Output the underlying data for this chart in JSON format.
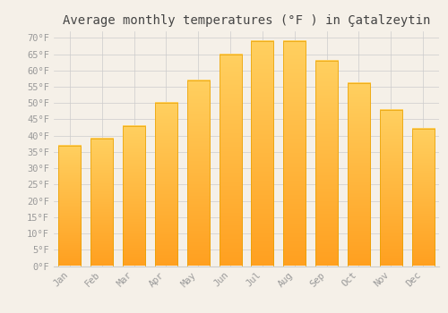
{
  "title": "Average monthly temperatures (°F ) in Çatalzeytin",
  "months": [
    "Jan",
    "Feb",
    "Mar",
    "Apr",
    "May",
    "Jun",
    "Jul",
    "Aug",
    "Sep",
    "Oct",
    "Nov",
    "Dec"
  ],
  "values": [
    37,
    39,
    43,
    50,
    57,
    65,
    69,
    69,
    63,
    56,
    48,
    42
  ],
  "bar_color_top": "#FFD060",
  "bar_color_bottom": "#FFA020",
  "bar_edge_color": "#E8A000",
  "background_color": "#F5F0E8",
  "grid_color": "#CCCCCC",
  "ylim": [
    0,
    72
  ],
  "yticks": [
    0,
    5,
    10,
    15,
    20,
    25,
    30,
    35,
    40,
    45,
    50,
    55,
    60,
    65,
    70
  ],
  "tick_label_color": "#999999",
  "title_color": "#444444",
  "title_fontsize": 10,
  "tick_fontsize": 7.5
}
